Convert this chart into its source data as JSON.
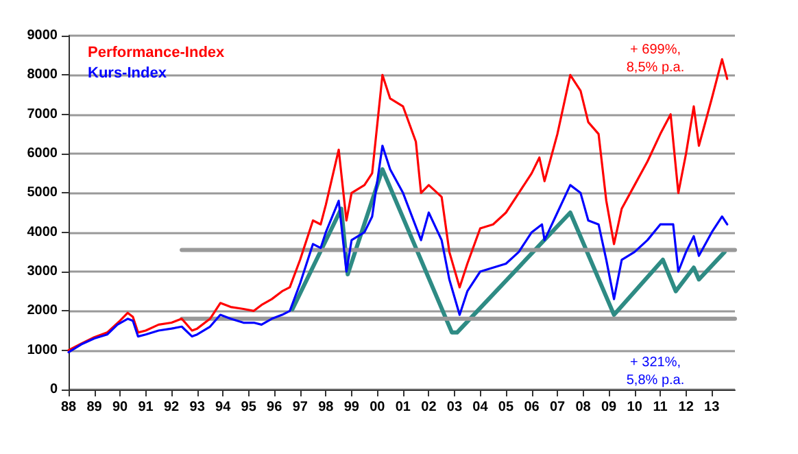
{
  "chart_data": {
    "type": "line",
    "xlim": [
      1988,
      2013.9
    ],
    "xticks": [
      {
        "value": 1988,
        "label": "88"
      },
      {
        "value": 1989,
        "label": "89"
      },
      {
        "value": 1990,
        "label": "90"
      },
      {
        "value": 1991,
        "label": "91"
      },
      {
        "value": 1992,
        "label": "92"
      },
      {
        "value": 1993,
        "label": "93"
      },
      {
        "value": 1994,
        "label": "94"
      },
      {
        "value": 1995,
        "label": "95"
      },
      {
        "value": 1996,
        "label": "96"
      },
      {
        "value": 1997,
        "label": "97"
      },
      {
        "value": 1998,
        "label": "98"
      },
      {
        "value": 1999,
        "label": "99"
      },
      {
        "value": 2000,
        "label": "00"
      },
      {
        "value": 2001,
        "label": "01"
      },
      {
        "value": 2002,
        "label": "02"
      },
      {
        "value": 2003,
        "label": "03"
      },
      {
        "value": 2004,
        "label": "04"
      },
      {
        "value": 2005,
        "label": "05"
      },
      {
        "value": 2006,
        "label": "06"
      },
      {
        "value": 2007,
        "label": "07"
      },
      {
        "value": 2008,
        "label": "08"
      },
      {
        "value": 2009,
        "label": "09"
      },
      {
        "value": 2010,
        "label": "10"
      },
      {
        "value": 2011,
        "label": "11"
      },
      {
        "value": 2012,
        "label": "12"
      },
      {
        "value": 2013,
        "label": "13"
      }
    ],
    "ylim": [
      0,
      9000
    ],
    "yticks": [
      0,
      1000,
      2000,
      3000,
      4000,
      5000,
      6000,
      7000,
      8000,
      9000
    ],
    "grid": "y",
    "legend": "top left",
    "marker": "none",
    "line_style": "solid",
    "series": [
      {
        "name": "Performance-Index",
        "color": "#ff0000",
        "x": [
          1988,
          1988.5,
          1989,
          1989.5,
          1990,
          1990.3,
          1990.5,
          1990.7,
          1991,
          1991.5,
          1992,
          1992.4,
          1992.8,
          1993,
          1993.5,
          1993.9,
          1994.3,
          1994.8,
          1995.2,
          1995.5,
          1995.9,
          1996.3,
          1996.6,
          1997,
          1997.5,
          1997.8,
          1998,
          1998.5,
          1998.8,
          1999,
          1999.5,
          1999.8,
          2000.2,
          2000.5,
          2001,
          2001.5,
          2001.7,
          2002,
          2002.5,
          2002.8,
          2003.2,
          2003.5,
          2004,
          2004.5,
          2005,
          2005.5,
          2006,
          2006.3,
          2006.5,
          2007,
          2007.5,
          2007.9,
          2008.2,
          2008.6,
          2008.9,
          2009.2,
          2009.5,
          2010,
          2010.5,
          2011,
          2011.4,
          2011.7,
          2012,
          2012.3,
          2012.5,
          2013,
          2013.4,
          2013.6
        ],
        "values": [
          1000,
          1170,
          1330,
          1450,
          1750,
          1950,
          1850,
          1450,
          1500,
          1650,
          1700,
          1800,
          1500,
          1550,
          1800,
          2200,
          2100,
          2050,
          2000,
          2150,
          2300,
          2500,
          2600,
          3300,
          4300,
          4200,
          4700,
          6100,
          4300,
          5000,
          5200,
          5500,
          8000,
          7400,
          7200,
          6300,
          5000,
          5200,
          4900,
          3500,
          2600,
          3200,
          4100,
          4200,
          4500,
          5000,
          5500,
          5900,
          5300,
          6500,
          8000,
          7600,
          6800,
          6500,
          4800,
          3700,
          4600,
          5200,
          5800,
          6500,
          7000,
          5000,
          6000,
          7200,
          6200,
          7400,
          8400,
          7900
        ]
      },
      {
        "name": "Kurs-Index",
        "color": "#0000ff",
        "x": [
          1988,
          1988.5,
          1989,
          1989.5,
          1989.9,
          1990.3,
          1990.5,
          1990.7,
          1991,
          1991.5,
          1992,
          1992.4,
          1992.8,
          1993,
          1993.5,
          1993.9,
          1994.3,
          1994.8,
          1995.2,
          1995.5,
          1995.9,
          1996.3,
          1996.6,
          1997,
          1997.5,
          1997.8,
          1998,
          1998.5,
          1998.8,
          1999,
          1999.5,
          1999.8,
          2000.2,
          2000.5,
          2001,
          2001.7,
          2002,
          2002.5,
          2002.8,
          2003.2,
          2003.5,
          2004,
          2004.5,
          2005,
          2005.5,
          2006,
          2006.4,
          2006.5,
          2007,
          2007.5,
          2007.9,
          2008.2,
          2008.6,
          2008.9,
          2009.2,
          2009.5,
          2010,
          2010.5,
          2011,
          2011.5,
          2011.7,
          2012,
          2012.3,
          2012.5,
          2013,
          2013.4,
          2013.6
        ],
        "values": [
          950,
          1150,
          1300,
          1400,
          1650,
          1800,
          1750,
          1350,
          1400,
          1500,
          1550,
          1600,
          1350,
          1400,
          1600,
          1900,
          1800,
          1700,
          1700,
          1650,
          1800,
          1900,
          2000,
          2700,
          3700,
          3600,
          4000,
          4800,
          3000,
          3800,
          4000,
          4400,
          6200,
          5600,
          5000,
          3800,
          4500,
          3800,
          2800,
          1900,
          2500,
          3000,
          3100,
          3200,
          3500,
          4000,
          4200,
          3800,
          4500,
          5200,
          5000,
          4300,
          4200,
          3300,
          2300,
          3300,
          3500,
          3800,
          4200,
          4200,
          3000,
          3500,
          3900,
          3400,
          4000,
          4400,
          4200
        ]
      },
      {
        "color": "#2e8b84",
        "x": [
          1996.7,
          1998.6,
          1998.85,
          2000.2,
          2002.9,
          2003.1,
          2007.5,
          2009.2,
          2011.1,
          2011.6,
          2012.3,
          2012.5,
          2013.5
        ],
        "values": [
          2040,
          4600,
          2930,
          5600,
          1450,
          1450,
          4500,
          1900,
          3300,
          2500,
          3100,
          2800,
          3500
        ]
      },
      {
        "color": "#999999",
        "x": [
          1992.4,
          2013.9
        ],
        "values": [
          3550,
          3550
        ]
      },
      {
        "color": "#999999",
        "x": [
          1992.4,
          2013.9
        ],
        "values": [
          1800,
          1800
        ]
      }
    ],
    "annotations": [
      "+ 699%,\n8,5% p.a.",
      "+ 321%,\n5,8% p.a."
    ]
  }
}
